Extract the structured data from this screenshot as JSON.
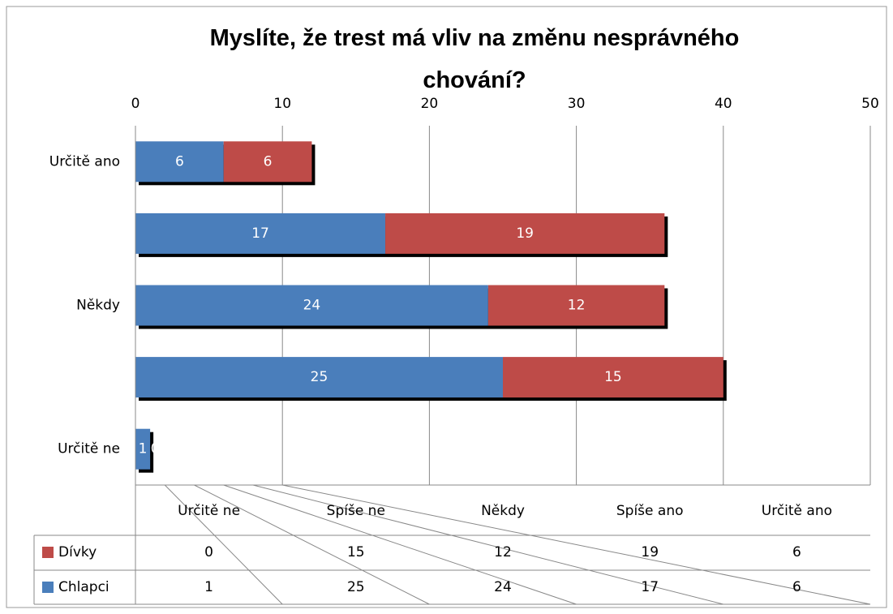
{
  "chart_data": {
    "type": "bar",
    "orientation": "horizontal",
    "stacked": true,
    "title": "Myslíte, že trest má vliv na změnu nesprávného chování?",
    "categories": [
      "Určitě ne",
      "Spíše ne",
      "Někdy",
      "Spíše ano",
      "Určitě ano"
    ],
    "series": [
      {
        "name": "Chlapci",
        "color": "#4a7ebb",
        "values": [
          1,
          25,
          24,
          17,
          6
        ]
      },
      {
        "name": "Dívky",
        "color": "#be4b48",
        "values": [
          0,
          15,
          12,
          19,
          6
        ]
      }
    ],
    "xlim": [
      0,
      50
    ],
    "xticks": [
      0,
      10,
      20,
      30,
      40,
      50
    ],
    "grid": true,
    "data_table": true
  }
}
